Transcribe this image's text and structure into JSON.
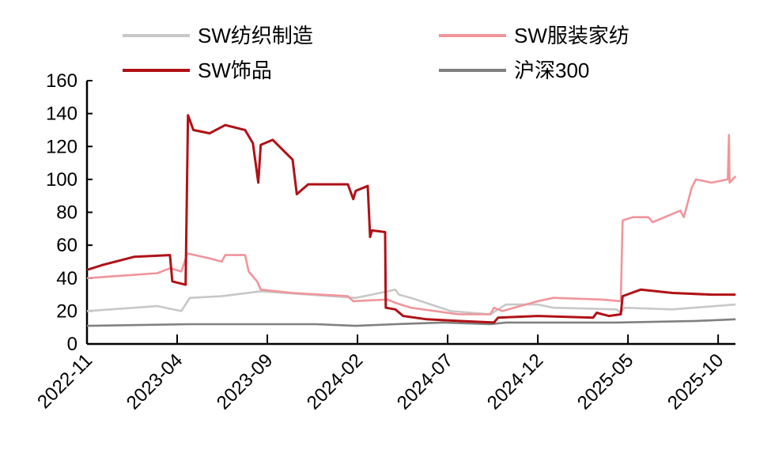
{
  "chart_data": {
    "type": "line",
    "title": "",
    "xlabel": "",
    "ylabel": "",
    "ylim": [
      0,
      160
    ],
    "yticks": [
      "0",
      "20",
      "40",
      "60",
      "80",
      "100",
      "120",
      "140",
      "160"
    ],
    "xlim": [
      "2022-11-01",
      "2025-11-01"
    ],
    "xticks": [
      "2022-11",
      "2023-04",
      "2023-09",
      "2024-02",
      "2024-07",
      "2024-12",
      "2025-05",
      "2025-10"
    ],
    "grid": false,
    "legend_position": "top",
    "series": [
      {
        "name": "SW纺织制造",
        "color": "#c8c8c8",
        "points": [
          [
            "2022-11-01",
            20
          ],
          [
            "2023-01-20",
            22
          ],
          [
            "2023-02-28",
            23
          ],
          [
            "2023-04-08",
            20
          ],
          [
            "2023-04-22",
            28
          ],
          [
            "2023-06-15",
            29
          ],
          [
            "2023-08-20",
            32
          ],
          [
            "2023-09-30",
            31
          ],
          [
            "2024-01-28",
            28
          ],
          [
            "2024-02-25",
            30
          ],
          [
            "2024-03-08",
            31
          ],
          [
            "2024-04-04",
            33
          ],
          [
            "2024-04-10",
            30
          ],
          [
            "2024-04-30",
            28
          ],
          [
            "2024-07-06",
            20
          ],
          [
            "2024-09-12",
            18
          ],
          [
            "2024-10-08",
            24
          ],
          [
            "2024-12-01",
            24
          ],
          [
            "2024-12-27",
            22
          ],
          [
            "2025-04-12",
            21
          ],
          [
            "2025-04-19",
            19
          ],
          [
            "2025-04-25",
            22
          ],
          [
            "2025-07-15",
            21
          ],
          [
            "2025-10-30",
            24
          ]
        ]
      },
      {
        "name": "SW服装家纺",
        "color": "#f0959b",
        "points": [
          [
            "2022-11-01",
            40
          ],
          [
            "2023-01-20",
            42
          ],
          [
            "2023-02-28",
            43
          ],
          [
            "2023-03-19",
            46
          ],
          [
            "2023-04-08",
            44
          ],
          [
            "2023-04-18",
            55
          ],
          [
            "2023-05-25",
            52
          ],
          [
            "2023-06-15",
            50
          ],
          [
            "2023-06-21",
            54
          ],
          [
            "2023-07-24",
            54
          ],
          [
            "2023-07-30",
            44
          ],
          [
            "2023-08-14",
            38
          ],
          [
            "2023-08-20",
            33
          ],
          [
            "2023-10-13",
            31
          ],
          [
            "2024-01-15",
            29
          ],
          [
            "2024-01-24",
            26
          ],
          [
            "2024-03-21",
            27
          ],
          [
            "2024-04-04",
            25
          ],
          [
            "2024-04-30",
            22
          ],
          [
            "2024-07-19",
            18
          ],
          [
            "2024-09-12",
            18
          ],
          [
            "2024-09-18",
            22
          ],
          [
            "2024-10-02",
            20
          ],
          [
            "2024-12-01",
            26
          ],
          [
            "2024-12-27",
            28
          ],
          [
            "2025-03-16",
            27
          ],
          [
            "2025-04-19",
            26
          ],
          [
            "2025-04-22",
            75
          ],
          [
            "2025-05-09",
            77
          ],
          [
            "2025-06-05",
            77
          ],
          [
            "2025-06-12",
            74
          ],
          [
            "2025-07-15",
            79
          ],
          [
            "2025-07-28",
            81
          ],
          [
            "2025-08-04",
            77
          ],
          [
            "2025-08-17",
            95
          ],
          [
            "2025-08-24",
            100
          ],
          [
            "2025-09-20",
            98
          ],
          [
            "2025-10-17",
            100
          ],
          [
            "2025-10-19",
            127
          ],
          [
            "2025-10-20",
            98
          ],
          [
            "2025-10-30",
            102
          ]
        ]
      },
      {
        "name": "SW饰品",
        "color": "#b01116",
        "points": [
          [
            "2022-11-01",
            45
          ],
          [
            "2022-11-27",
            48
          ],
          [
            "2023-01-20",
            53
          ],
          [
            "2023-03-19",
            54
          ],
          [
            "2023-03-23",
            38
          ],
          [
            "2023-04-15",
            36
          ],
          [
            "2023-04-19",
            139
          ],
          [
            "2023-04-28",
            130
          ],
          [
            "2023-05-25",
            128
          ],
          [
            "2023-06-21",
            133
          ],
          [
            "2023-07-24",
            130
          ],
          [
            "2023-08-07",
            122
          ],
          [
            "2023-08-16",
            98
          ],
          [
            "2023-08-20",
            121
          ],
          [
            "2023-09-10",
            124
          ],
          [
            "2023-10-13",
            112
          ],
          [
            "2023-10-20",
            91
          ],
          [
            "2023-11-09",
            97
          ],
          [
            "2024-01-15",
            97
          ],
          [
            "2024-01-24",
            88
          ],
          [
            "2024-01-28",
            93
          ],
          [
            "2024-02-18",
            96
          ],
          [
            "2024-02-22",
            65
          ],
          [
            "2024-02-25",
            69
          ],
          [
            "2024-03-17",
            68
          ],
          [
            "2024-03-18",
            22
          ],
          [
            "2024-04-04",
            21
          ],
          [
            "2024-04-17",
            17
          ],
          [
            "2024-05-26",
            15
          ],
          [
            "2024-07-19",
            14
          ],
          [
            "2024-09-18",
            13
          ],
          [
            "2024-09-25",
            16
          ],
          [
            "2024-12-01",
            17
          ],
          [
            "2025-03-03",
            16
          ],
          [
            "2025-03-09",
            19
          ],
          [
            "2025-03-29",
            17
          ],
          [
            "2025-04-19",
            18
          ],
          [
            "2025-04-22",
            29
          ],
          [
            "2025-05-22",
            33
          ],
          [
            "2025-07-15",
            31
          ],
          [
            "2025-09-20",
            30
          ],
          [
            "2025-10-30",
            30
          ]
        ]
      },
      {
        "name": "沪深300",
        "color": "#808080",
        "points": [
          [
            "2022-11-01",
            11
          ],
          [
            "2023-04-22",
            12
          ],
          [
            "2023-11-22",
            12
          ],
          [
            "2024-01-28",
            11
          ],
          [
            "2024-04-04",
            12
          ],
          [
            "2024-06-23",
            13
          ],
          [
            "2024-09-12",
            12
          ],
          [
            "2024-10-08",
            13
          ],
          [
            "2025-04-12",
            13
          ],
          [
            "2025-08-24",
            14
          ],
          [
            "2025-10-30",
            15
          ]
        ]
      }
    ]
  }
}
